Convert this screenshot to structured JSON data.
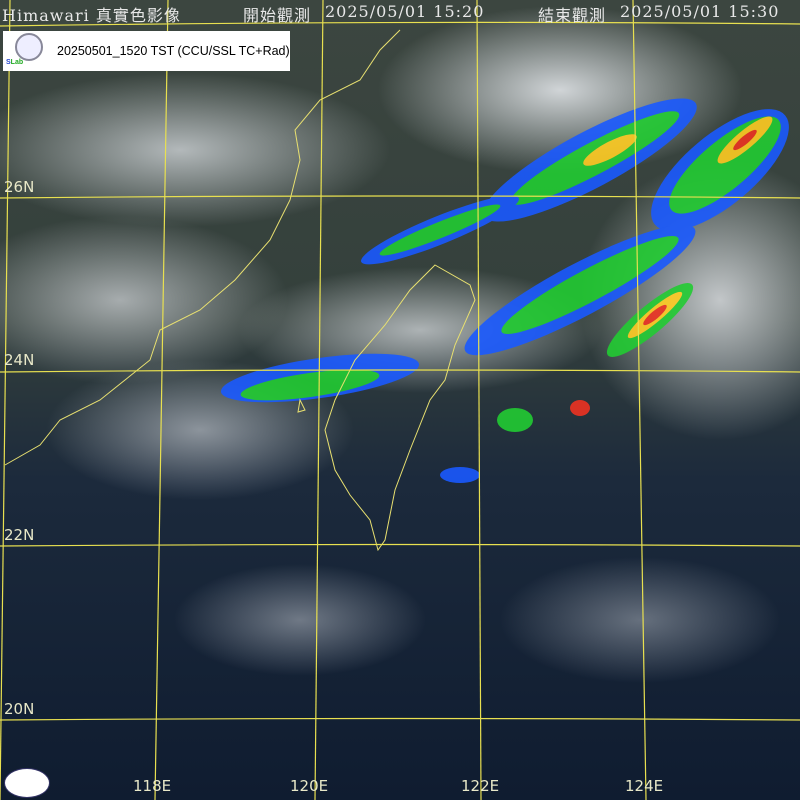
{
  "header": {
    "title": "Himawari 真實色影像",
    "start_label": "開始觀測",
    "start_time": "2025/05/01 15:20",
    "end_label": "結束觀測",
    "end_time": "2025/05/01 15:30"
  },
  "stamp": {
    "text": "20250501_1520 TST (CCU/SSL TC+Rad)",
    "logo_text": "Severe Storm Lab"
  },
  "grid": {
    "latitudes": [
      "26N",
      "24N",
      "22N",
      "20N"
    ],
    "longitudes": [
      "118E",
      "120E",
      "122E",
      "124E"
    ],
    "line_color": "#e8e050"
  },
  "colors": {
    "coast": "#e8e070",
    "radar_low": "#1a5aff",
    "radar_mid": "#22cc33",
    "radar_high": "#ffcc22",
    "radar_max": "#ee3322"
  }
}
